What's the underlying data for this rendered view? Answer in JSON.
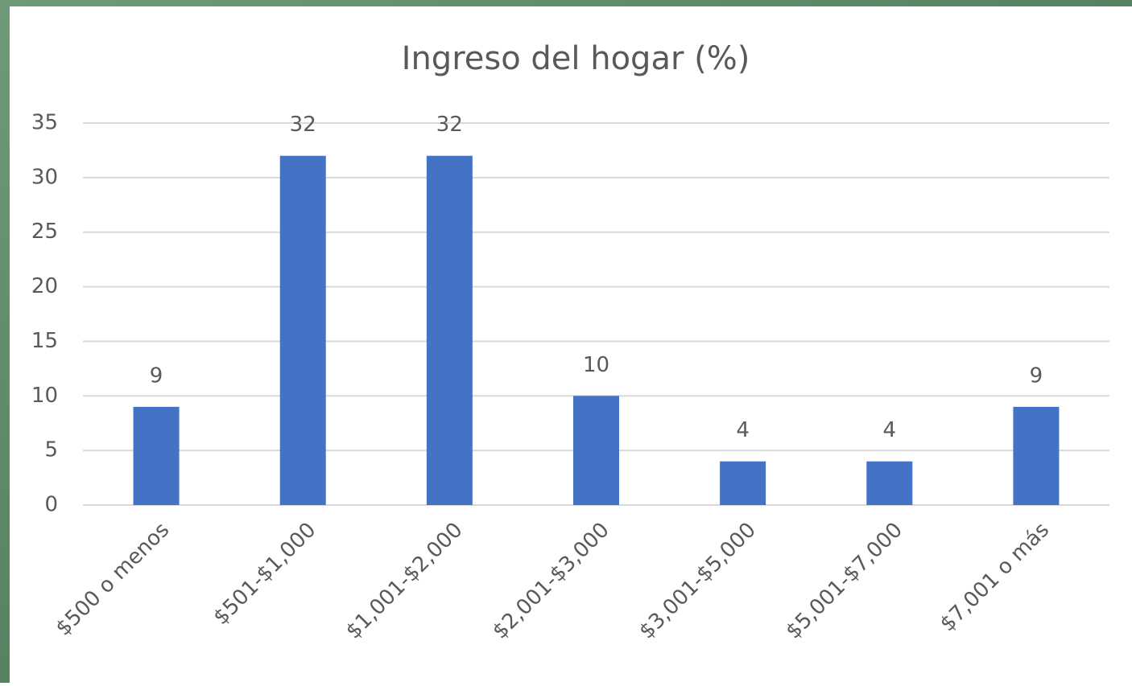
{
  "chart_data": {
    "type": "bar",
    "title": "Ingreso del hogar (%)",
    "categories": [
      "$500 o menos",
      "$501-$1,000",
      "$1,001-$2,000",
      "$2,001-$3,000",
      "$3,001-$5,000",
      "$5,001-$7,000",
      "$7,001 o más"
    ],
    "values": [
      9,
      32,
      32,
      10,
      4,
      4,
      9
    ],
    "color": "#4472c4",
    "ylim": [
      0,
      35
    ],
    "yticks": [
      0,
      5,
      10,
      15,
      20,
      25,
      30,
      35
    ],
    "grid": true
  }
}
